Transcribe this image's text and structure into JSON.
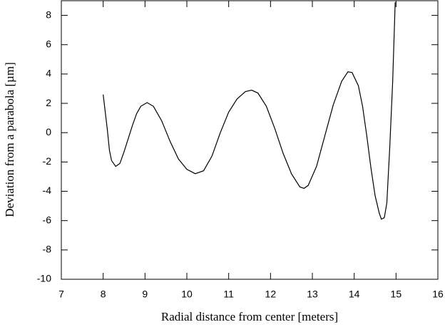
{
  "chart_data": {
    "type": "line",
    "xlabel": "Radial distance from center [meters]",
    "ylabel": "Deviation from a parabola [µm]",
    "xlim": [
      7,
      16
    ],
    "xticks": [
      7,
      8,
      9,
      10,
      11,
      12,
      13,
      14,
      15,
      16
    ],
    "ylim": [
      -10,
      9
    ],
    "yticks": [
      -10,
      -8,
      -6,
      -4,
      -2,
      0,
      2,
      4,
      6,
      8
    ],
    "grid": false,
    "series": [
      {
        "color": "#000000",
        "x": [
          8.0,
          8.1,
          8.15,
          8.2,
          8.3,
          8.4,
          8.5,
          8.6,
          8.7,
          8.8,
          8.9,
          9.05,
          9.2,
          9.4,
          9.6,
          9.8,
          10.0,
          10.2,
          10.4,
          10.6,
          10.8,
          11.0,
          11.2,
          11.4,
          11.55,
          11.7,
          11.9,
          12.1,
          12.3,
          12.5,
          12.7,
          12.8,
          12.9,
          13.1,
          13.3,
          13.5,
          13.7,
          13.85,
          13.95,
          14.1,
          14.2,
          14.3,
          14.4,
          14.5,
          14.6,
          14.65,
          14.72,
          14.78,
          14.85,
          14.92,
          14.98
        ],
        "values": [
          2.6,
          0.2,
          -1.2,
          -1.9,
          -2.3,
          -2.1,
          -1.3,
          -0.4,
          0.5,
          1.3,
          1.8,
          2.05,
          1.8,
          0.8,
          -0.6,
          -1.8,
          -2.5,
          -2.8,
          -2.6,
          -1.6,
          0.0,
          1.4,
          2.3,
          2.8,
          2.9,
          2.7,
          1.8,
          0.3,
          -1.4,
          -2.8,
          -3.7,
          -3.8,
          -3.6,
          -2.3,
          -0.2,
          1.9,
          3.5,
          4.15,
          4.1,
          3.2,
          1.8,
          -0.2,
          -2.4,
          -4.3,
          -5.5,
          -5.9,
          -5.8,
          -4.8,
          -1.0,
          3.5,
          8.9
        ]
      }
    ]
  }
}
